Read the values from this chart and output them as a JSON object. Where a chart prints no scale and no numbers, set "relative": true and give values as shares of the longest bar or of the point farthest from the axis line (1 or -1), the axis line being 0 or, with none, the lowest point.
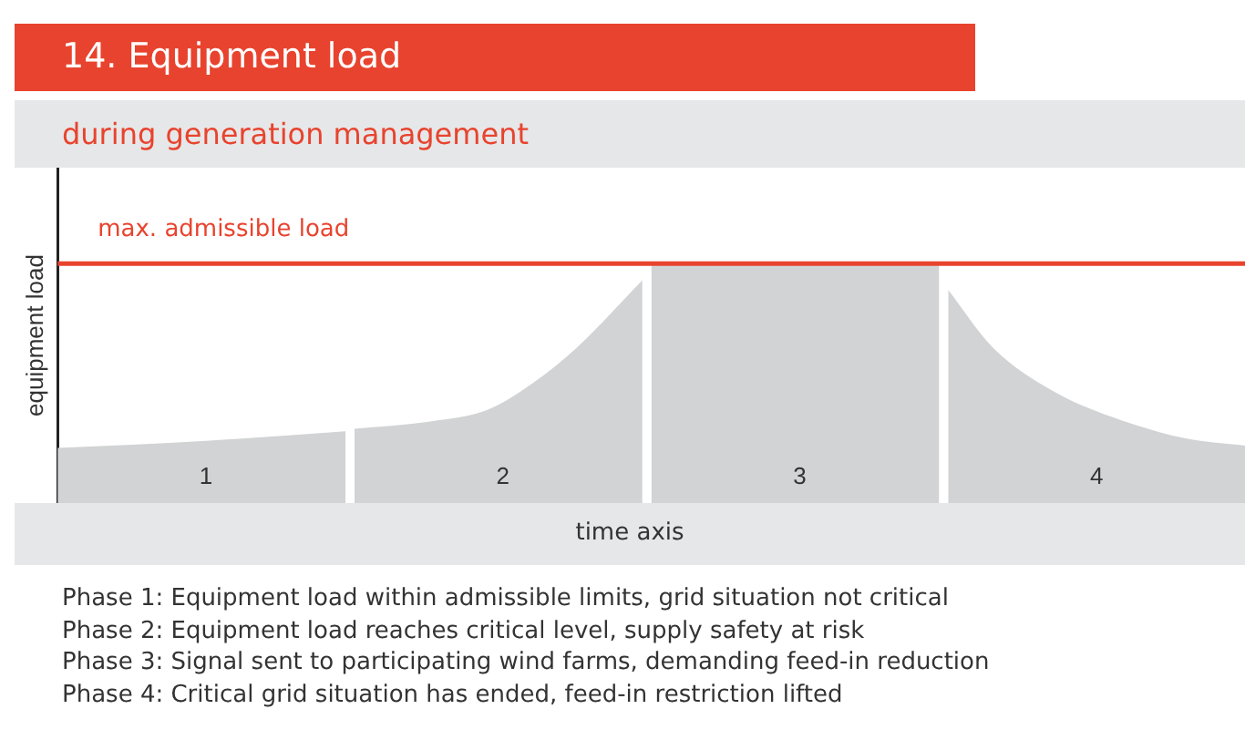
{
  "chart_data": {
    "type": "area",
    "title": "14. Equipment load",
    "subtitle": "during generation management",
    "xlabel": "time axis",
    "ylabel": "equipment load",
    "relative": true,
    "xlim": [
      0,
      4
    ],
    "xticks": [
      {
        "value": 0.5,
        "label": "1"
      },
      {
        "value": 1.5,
        "label": "2"
      },
      {
        "value": 2.5,
        "label": "3"
      },
      {
        "value": 3.5,
        "label": "4"
      }
    ],
    "series": [
      {
        "color": "#d1d3d4",
        "x": [
          0,
          0.5,
          0.97
        ],
        "values": [
          0.23,
          0.26,
          0.3
        ]
      },
      {
        "color": "#d1d3d4",
        "x": [
          1,
          1.25,
          1.45,
          1.6,
          1.75,
          1.97
        ],
        "values": [
          0.31,
          0.34,
          0.39,
          0.5,
          0.65,
          0.93
        ]
      },
      {
        "color": "#d1d3d4",
        "x": [
          2,
          2.97
        ],
        "values": [
          1,
          1
        ]
      },
      {
        "color": "#d1d3d4",
        "x": [
          3,
          3.15,
          3.35,
          3.55,
          3.8,
          4
        ],
        "values": [
          0.89,
          0.65,
          0.47,
          0.36,
          0.27,
          0.24
        ]
      }
    ],
    "ref_lines": [
      {
        "axis": "y",
        "value": 1,
        "label": "max. admissible load",
        "color": "#e8432e"
      }
    ],
    "grid": false,
    "legend": false,
    "annotations": [
      "Phase 1: Equipment load within admissible limits, grid situation not critical",
      "Phase 2: Equipment load reaches critical level, supply safety at risk",
      "Phase 3: Signal sent to participating wind farms, demanding feed-in reduction",
      "Phase 4: Critical grid situation has ended, feed-in restriction lifted"
    ]
  }
}
